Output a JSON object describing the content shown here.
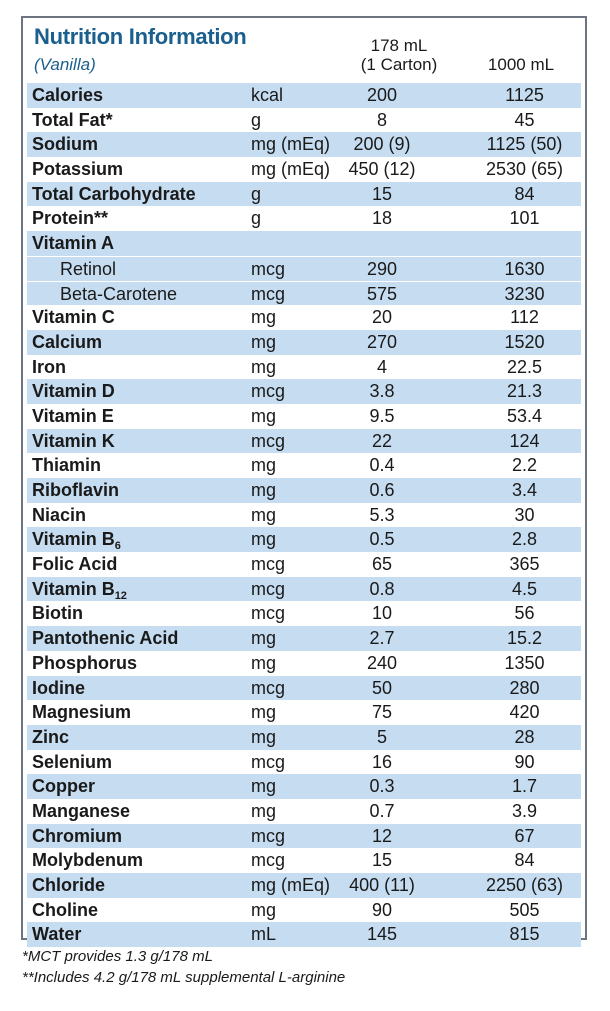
{
  "header": {
    "title": "Nutrition Information",
    "flavor": "(Vanilla)",
    "col1": "178 mL",
    "col1_sub": "(1 Carton)",
    "col2": "1000 mL"
  },
  "rows": [
    {
      "name": "Calories",
      "unit": "kcal",
      "v1": "200",
      "v2": "1125"
    },
    {
      "name": "Total Fat*",
      "unit": "g",
      "v1": "8",
      "v2": "45"
    },
    {
      "name": "Sodium",
      "unit": "mg (mEq)",
      "v1": "200 (9)",
      "v2": "1125 (50)"
    },
    {
      "name": "Potassium",
      "unit": "mg (mEq)",
      "v1": "450 (12)",
      "v2": "2530 (65)"
    },
    {
      "name": "Total Carbohydrate",
      "unit": "g",
      "v1": "15",
      "v2": "84"
    },
    {
      "name": "Protein**",
      "unit": "g",
      "v1": "18",
      "v2": "101"
    },
    {
      "name": "Vitamin A",
      "unit": "",
      "v1": "",
      "v2": ""
    },
    {
      "name": "Retinol",
      "unit": "mcg",
      "v1": "290",
      "v2": "1630"
    },
    {
      "name": "Beta-Carotene",
      "unit": "mcg",
      "v1": "575",
      "v2": "3230"
    },
    {
      "name": "Vitamin C",
      "unit": "mg",
      "v1": "20",
      "v2": "112"
    },
    {
      "name": "Calcium",
      "unit": "mg",
      "v1": "270",
      "v2": "1520"
    },
    {
      "name": "Iron",
      "unit": "mg",
      "v1": "4",
      "v2": "22.5"
    },
    {
      "name": "Vitamin D",
      "unit": "mcg",
      "v1": "3.8",
      "v2": "21.3"
    },
    {
      "name": "Vitamin E",
      "unit": "mg",
      "v1": "9.5",
      "v2": "53.4"
    },
    {
      "name": "Vitamin K",
      "unit": "mcg",
      "v1": "22",
      "v2": "124"
    },
    {
      "name": "Thiamin",
      "unit": "mg",
      "v1": "0.4",
      "v2": "2.2"
    },
    {
      "name": "Riboflavin",
      "unit": "mg",
      "v1": "0.6",
      "v2": "3.4"
    },
    {
      "name": "Niacin",
      "unit": "mg",
      "v1": "5.3",
      "v2": "30"
    },
    {
      "name": "Vitamin B",
      "name_sub": "6",
      "unit": "mg",
      "v1": "0.5",
      "v2": "2.8"
    },
    {
      "name": "Folic Acid",
      "unit": "mcg",
      "v1": "65",
      "v2": "365"
    },
    {
      "name": "Vitamin B",
      "name_sub": "12",
      "unit": "mcg",
      "v1": "0.8",
      "v2": "4.5"
    },
    {
      "name": "Biotin",
      "unit": "mcg",
      "v1": "10",
      "v2": "56"
    },
    {
      "name": "Pantothenic Acid",
      "unit": "mg",
      "v1": "2.7",
      "v2": "15.2"
    },
    {
      "name": "Phosphorus",
      "unit": "mg",
      "v1": "240",
      "v2": "1350"
    },
    {
      "name": "Iodine",
      "unit": "mcg",
      "v1": "50",
      "v2": "280"
    },
    {
      "name": "Magnesium",
      "unit": "mg",
      "v1": "75",
      "v2": "420"
    },
    {
      "name": "Zinc",
      "unit": "mg",
      "v1": "5",
      "v2": "28"
    },
    {
      "name": "Selenium",
      "unit": "mcg",
      "v1": "16",
      "v2": "90"
    },
    {
      "name": "Copper",
      "unit": "mg",
      "v1": "0.3",
      "v2": "1.7"
    },
    {
      "name": "Manganese",
      "unit": "mg",
      "v1": "0.7",
      "v2": "3.9"
    },
    {
      "name": "Chromium",
      "unit": "mcg",
      "v1": "12",
      "v2": "67"
    },
    {
      "name": "Molybdenum",
      "unit": "mcg",
      "v1": "15",
      "v2": "84"
    },
    {
      "name": "Chloride",
      "unit": "mg (mEq)",
      "v1": "400 (11)",
      "v2": "2250 (63)"
    },
    {
      "name": "Choline",
      "unit": "mg",
      "v1": "90",
      "v2": "505"
    },
    {
      "name": "Water",
      "unit": "mL",
      "v1": "145",
      "v2": "815"
    }
  ],
  "footnotes": [
    "*MCT provides 1.3 g/178 mL",
    "**Includes 4.2 g/178 mL supplemental L-arginine"
  ],
  "colors": {
    "title": "#1b5f8f",
    "band": "#c5dcf1",
    "border": "#6b7480"
  }
}
